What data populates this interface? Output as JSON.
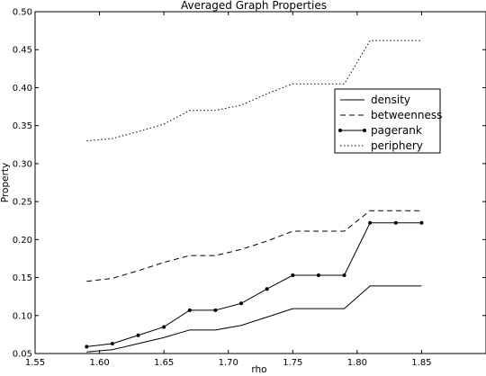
{
  "chart_data": {
    "type": "line",
    "title": "Averaged Graph Properties",
    "xlabel": "rho",
    "ylabel": "Property",
    "xlim": [
      1.55,
      1.9
    ],
    "ylim": [
      0.05,
      0.5
    ],
    "xticks": [
      "1.55",
      "1.60",
      "1.65",
      "1.70",
      "1.75",
      "1.80",
      "1.85"
    ],
    "yticks": [
      "0.05",
      "0.10",
      "0.15",
      "0.20",
      "0.25",
      "0.30",
      "0.35",
      "0.40",
      "0.45",
      "0.50"
    ],
    "grid": false,
    "legend_position": "center-right",
    "x": [
      1.59,
      1.61,
      1.63,
      1.65,
      1.67,
      1.69,
      1.71,
      1.73,
      1.75,
      1.77,
      1.79,
      1.81,
      1.83,
      1.85
    ],
    "series": [
      {
        "name": "density",
        "style": "solid",
        "markers": false,
        "values": [
          0.052,
          0.055,
          0.063,
          0.071,
          0.081,
          0.081,
          0.087,
          0.098,
          0.109,
          0.109,
          0.109,
          0.139,
          0.139,
          0.139
        ]
      },
      {
        "name": "betweenness",
        "style": "dashed",
        "markers": false,
        "values": [
          0.145,
          0.149,
          0.159,
          0.17,
          0.179,
          0.179,
          0.187,
          0.198,
          0.211,
          0.211,
          0.211,
          0.238,
          0.238,
          0.238
        ]
      },
      {
        "name": "pagerank",
        "style": "solid",
        "markers": true,
        "values": [
          0.059,
          0.063,
          0.074,
          0.085,
          0.107,
          0.107,
          0.116,
          0.135,
          0.153,
          0.153,
          0.153,
          0.222,
          0.222,
          0.222
        ]
      },
      {
        "name": "periphery",
        "style": "dotted",
        "markers": false,
        "values": [
          0.33,
          0.333,
          0.342,
          0.352,
          0.37,
          0.37,
          0.377,
          0.392,
          0.405,
          0.405,
          0.405,
          0.462,
          0.462,
          0.462
        ]
      }
    ]
  }
}
